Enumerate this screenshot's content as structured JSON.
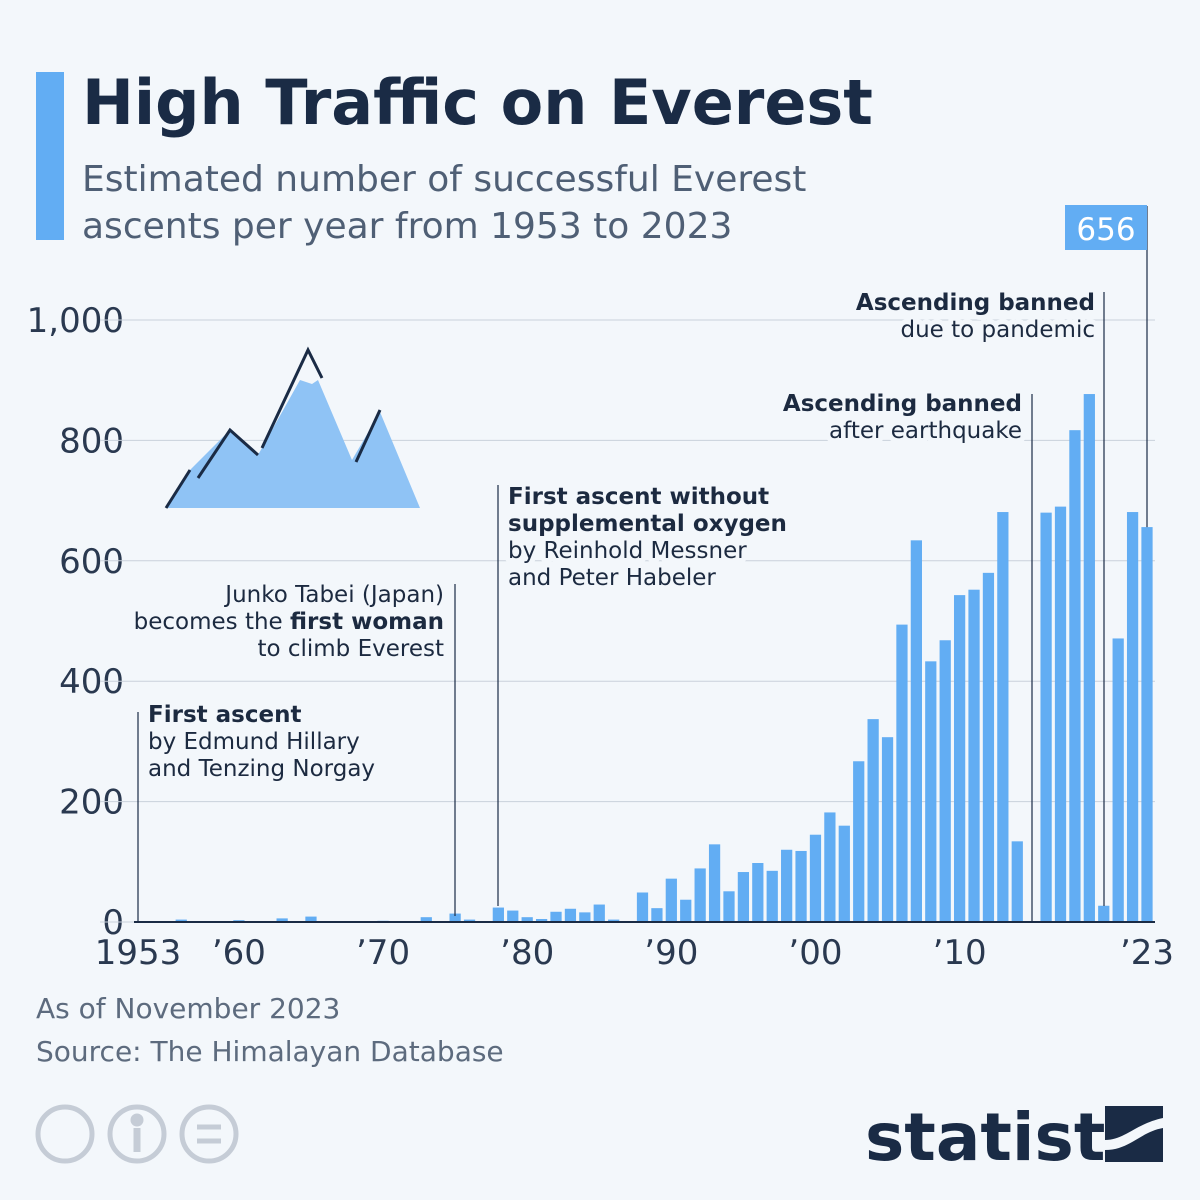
{
  "chart_data": {
    "type": "bar",
    "title": "High Traffic on Everest",
    "subtitle": [
      "Estimated number of successful Everest",
      "ascents per year from 1953 to 2023"
    ],
    "x": [
      1953,
      1954,
      1955,
      1956,
      1957,
      1958,
      1959,
      1960,
      1961,
      1962,
      1963,
      1964,
      1965,
      1966,
      1967,
      1968,
      1969,
      1970,
      1971,
      1972,
      1973,
      1974,
      1975,
      1976,
      1977,
      1978,
      1979,
      1980,
      1981,
      1982,
      1983,
      1984,
      1985,
      1986,
      1987,
      1988,
      1989,
      1990,
      1991,
      1992,
      1993,
      1994,
      1995,
      1996,
      1997,
      1998,
      1999,
      2000,
      2001,
      2002,
      2003,
      2004,
      2005,
      2006,
      2007,
      2008,
      2009,
      2010,
      2011,
      2012,
      2013,
      2014,
      2015,
      2016,
      2017,
      2018,
      2019,
      2020,
      2021,
      2022,
      2023
    ],
    "values": [
      0,
      0,
      0,
      4,
      0,
      0,
      0,
      3,
      0,
      0,
      6,
      0,
      9,
      0,
      0,
      0,
      0,
      2,
      0,
      0,
      8,
      0,
      14,
      4,
      0,
      24,
      19,
      8,
      5,
      17,
      22,
      16,
      29,
      4,
      0,
      49,
      23,
      72,
      37,
      89,
      129,
      51,
      83,
      98,
      85,
      120,
      118,
      145,
      182,
      160,
      267,
      337,
      307,
      494,
      634,
      433,
      468,
      543,
      552,
      580,
      681,
      134,
      0,
      680,
      690,
      817,
      877,
      27,
      471,
      681,
      656
    ],
    "color": "#62adf3",
    "xlim": [
      1953,
      2023
    ],
    "xticks": [
      {
        "value": 1953,
        "label": "1953"
      },
      {
        "value": 1960,
        "label": "’60"
      },
      {
        "value": 1970,
        "label": "’70"
      },
      {
        "value": 1980,
        "label": "’80"
      },
      {
        "value": 1990,
        "label": "’90"
      },
      {
        "value": 2000,
        "label": "’00"
      },
      {
        "value": 2010,
        "label": "’10"
      },
      {
        "value": 2023,
        "label": "’23"
      }
    ],
    "ylim": [
      0,
      1000
    ],
    "yticks": [
      0,
      200,
      400,
      600,
      800,
      {
        "value": 1000,
        "label": "1,000"
      }
    ],
    "grid": true,
    "annotations": [
      {
        "lines": [
          [
            {
              "text": "First ascent",
              "bold": true
            }
          ],
          [
            {
              "text": "by Edmund Hillary"
            }
          ],
          [
            {
              "text": "and Tenzing Norgay"
            }
          ]
        ]
      },
      {
        "lines": [
          [
            {
              "text": "Junko Tabei (Japan)"
            }
          ],
          [
            {
              "text": "becomes the "
            },
            {
              "text": "first woman",
              "bold": true
            }
          ],
          [
            {
              "text": "to climb Everest"
            }
          ]
        ]
      },
      {
        "lines": [
          [
            {
              "text": "First ascent without",
              "bold": true
            }
          ],
          [
            {
              "text": "supplemental oxygen",
              "bold": true
            }
          ],
          [
            {
              "text": "by Reinhold Messner"
            }
          ],
          [
            {
              "text": "and Peter Habeler"
            }
          ]
        ]
      },
      {
        "lines": [
          [
            {
              "text": "Ascending banned",
              "bold": true
            }
          ],
          [
            {
              "text": "after earthquake"
            }
          ]
        ]
      },
      {
        "lines": [
          [
            {
              "text": "Ascending banned",
              "bold": true
            }
          ],
          [
            {
              "text": "due to pandemic"
            }
          ]
        ]
      }
    ],
    "notes": [
      "As of November 2023",
      "Source: The Himalayan Database"
    ],
    "brand": "statista"
  }
}
